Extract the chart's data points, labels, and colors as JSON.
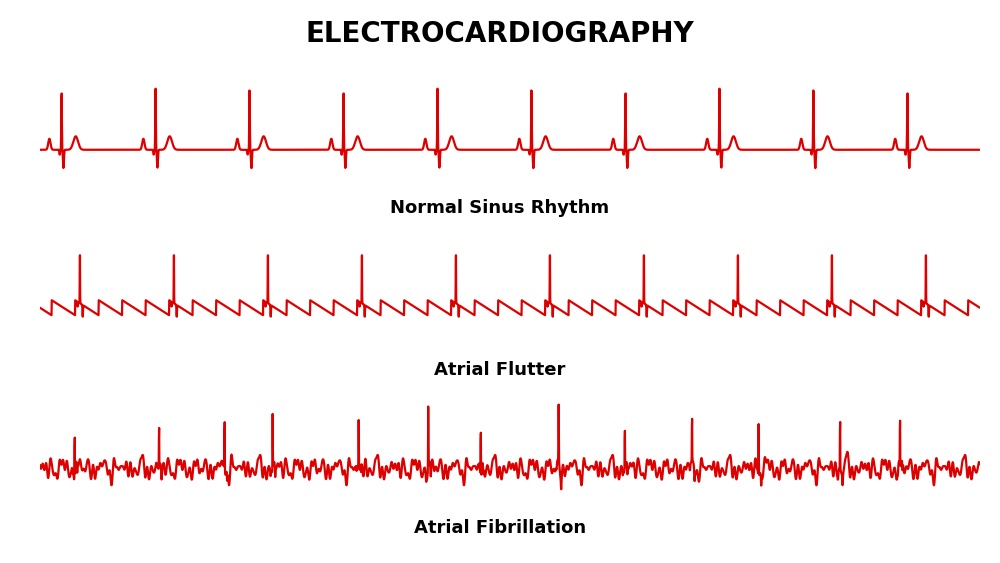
{
  "title": "ELECTROCARDIOGRAPHY",
  "title_fontsize": 20,
  "title_color": "#000000",
  "bg_color": "#ffffff",
  "ecg_color": "#dd0000",
  "ecg_linewidth": 1.6,
  "labels": [
    "Normal Sinus Rhythm",
    "Atrial Flutter",
    "Atrial Fibrillation"
  ],
  "label_fontsize": 13,
  "label_fontweight": "bold",
  "underline_color": "#dd0000"
}
